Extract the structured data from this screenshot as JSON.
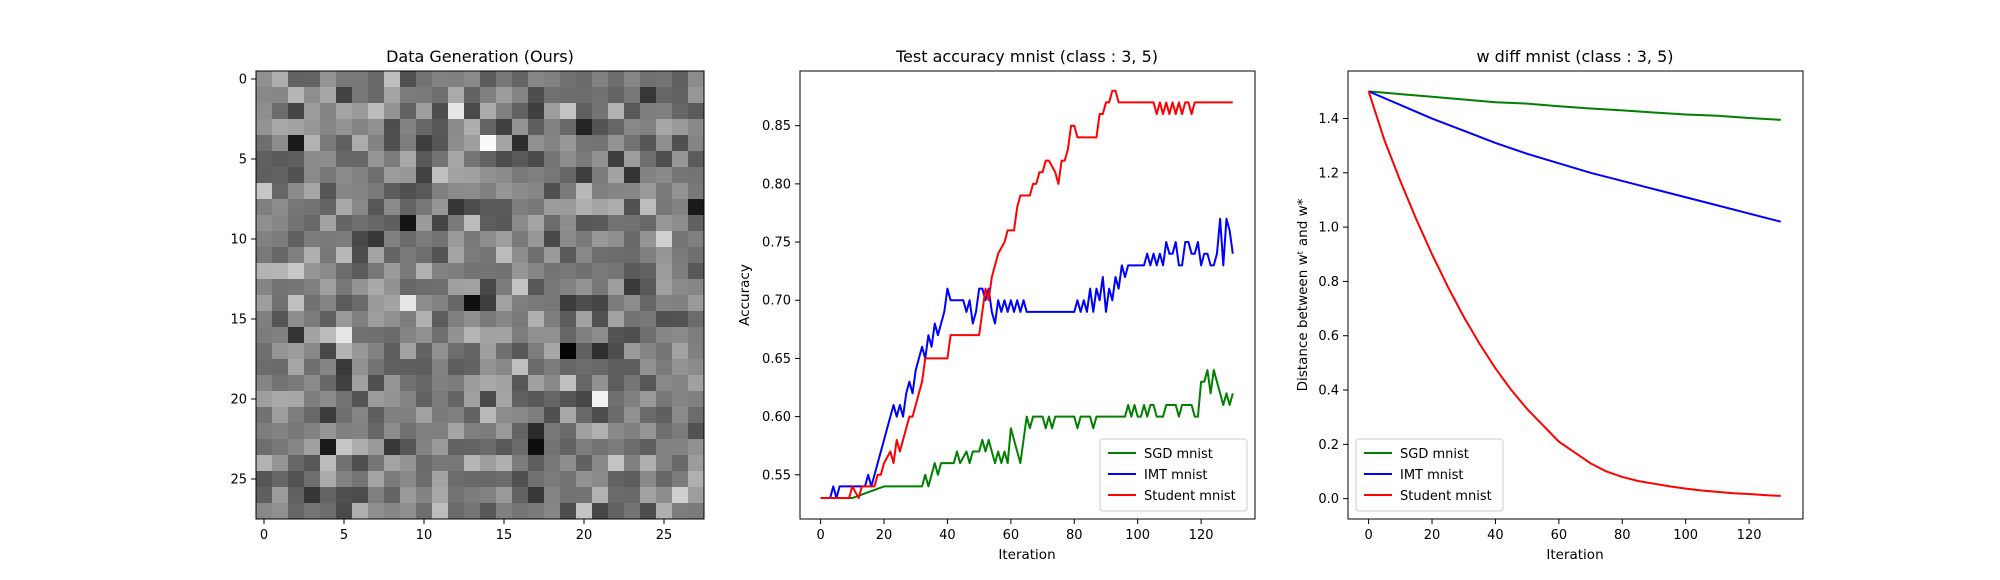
{
  "colors": {
    "sgd": "#008000",
    "imt": "#0000ff",
    "student": "#ff0000",
    "frame": "#000000"
  },
  "chart_data": [
    {
      "type": "heatmap",
      "title": "Data Generation (Ours)",
      "colormap": "gray",
      "rows": 28,
      "cols": 28,
      "xticks": [
        0,
        5,
        10,
        15,
        20,
        25
      ],
      "yticks": [
        0,
        5,
        10,
        15,
        20,
        25
      ],
      "xlim": [
        -0.5,
        27.5
      ],
      "ylim": [
        27.5,
        -0.5
      ],
      "value_range": [
        0,
        1
      ],
      "noise_seed": 7,
      "highlights": [
        {
          "row": 4,
          "col": 14,
          "value": 0.98
        },
        {
          "row": 17,
          "col": 19,
          "value": 0.02
        },
        {
          "row": 23,
          "col": 17,
          "value": 0.05
        },
        {
          "row": 23,
          "col": 4,
          "value": 0.1
        },
        {
          "row": 20,
          "col": 21,
          "value": 0.95
        },
        {
          "row": 16,
          "col": 5,
          "value": 0.9
        },
        {
          "row": 9,
          "col": 9,
          "value": 0.08
        },
        {
          "row": 14,
          "col": 13,
          "value": 0.06
        },
        {
          "row": 14,
          "col": 9,
          "value": 0.9
        },
        {
          "row": 4,
          "col": 2,
          "value": 0.1
        },
        {
          "row": 8,
          "col": 27,
          "value": 0.1
        },
        {
          "row": 2,
          "col": 12,
          "value": 0.9
        }
      ]
    },
    {
      "type": "line",
      "title": "Test accuracy mnist (class : 3, 5)",
      "xlabel": "Iteration",
      "ylabel": "Accuracy",
      "xlim": [
        -6.5,
        137
      ],
      "ylim": [
        0.512,
        0.897
      ],
      "xticks": [
        0,
        20,
        40,
        60,
        80,
        100,
        120
      ],
      "yticks": [
        0.55,
        0.6,
        0.65,
        0.7,
        0.75,
        0.8,
        0.85
      ],
      "legend": "lower-right",
      "series": [
        {
          "name": "SGD mnist",
          "color": "#008000",
          "x": [
            0,
            10,
            20,
            32,
            33,
            34,
            35,
            36,
            37,
            38,
            42,
            43,
            44,
            46,
            47,
            48,
            50,
            51,
            52,
            53,
            54,
            55,
            56,
            57,
            58,
            59,
            60,
            62,
            63,
            65,
            66,
            67,
            68,
            70,
            71,
            72,
            73,
            74,
            80,
            81,
            82,
            85,
            86,
            87,
            90,
            91,
            96,
            97,
            98,
            99,
            100,
            101,
            102,
            103,
            104,
            105,
            106,
            107,
            108,
            109,
            112,
            113,
            114,
            115,
            117,
            118,
            119,
            120,
            121,
            122,
            123,
            124,
            125,
            126,
            127,
            128,
            129,
            130
          ],
          "values": [
            0.53,
            0.53,
            0.54,
            0.54,
            0.55,
            0.54,
            0.55,
            0.56,
            0.55,
            0.56,
            0.56,
            0.57,
            0.56,
            0.57,
            0.56,
            0.57,
            0.57,
            0.58,
            0.57,
            0.58,
            0.57,
            0.56,
            0.57,
            0.56,
            0.57,
            0.56,
            0.59,
            0.57,
            0.56,
            0.6,
            0.59,
            0.6,
            0.6,
            0.6,
            0.59,
            0.6,
            0.59,
            0.6,
            0.6,
            0.59,
            0.6,
            0.6,
            0.59,
            0.6,
            0.6,
            0.6,
            0.6,
            0.61,
            0.6,
            0.61,
            0.6,
            0.6,
            0.61,
            0.6,
            0.61,
            0.61,
            0.6,
            0.6,
            0.6,
            0.61,
            0.61,
            0.6,
            0.61,
            0.61,
            0.61,
            0.6,
            0.6,
            0.63,
            0.63,
            0.64,
            0.62,
            0.64,
            0.63,
            0.62,
            0.61,
            0.62,
            0.61,
            0.62
          ]
        },
        {
          "name": "IMT mnist",
          "color": "#0000ff",
          "x": [
            0,
            3,
            4,
            5,
            6,
            14,
            15,
            16,
            17,
            18,
            19,
            20,
            21,
            22,
            23,
            24,
            25,
            26,
            27,
            28,
            29,
            30,
            31,
            32,
            33,
            34,
            35,
            36,
            37,
            38,
            39,
            40,
            41,
            42,
            45,
            46,
            47,
            48,
            49,
            50,
            51,
            52,
            53,
            54,
            55,
            56,
            57,
            58,
            59,
            60,
            61,
            62,
            63,
            64,
            65,
            80,
            81,
            82,
            83,
            84,
            85,
            86,
            87,
            88,
            89,
            90,
            91,
            92,
            93,
            94,
            95,
            96,
            97,
            98,
            100,
            101,
            102,
            103,
            104,
            105,
            106,
            107,
            108,
            109,
            110,
            111,
            112,
            113,
            114,
            115,
            116,
            117,
            118,
            119,
            120,
            121,
            122,
            123,
            124,
            125,
            126,
            127,
            128,
            129,
            130
          ],
          "values": [
            0.53,
            0.53,
            0.54,
            0.53,
            0.54,
            0.54,
            0.55,
            0.54,
            0.55,
            0.56,
            0.57,
            0.58,
            0.59,
            0.6,
            0.61,
            0.6,
            0.61,
            0.6,
            0.62,
            0.63,
            0.62,
            0.64,
            0.65,
            0.66,
            0.65,
            0.67,
            0.66,
            0.68,
            0.67,
            0.68,
            0.69,
            0.71,
            0.7,
            0.7,
            0.7,
            0.69,
            0.7,
            0.68,
            0.69,
            0.71,
            0.71,
            0.7,
            0.71,
            0.69,
            0.68,
            0.7,
            0.69,
            0.7,
            0.69,
            0.7,
            0.69,
            0.7,
            0.69,
            0.7,
            0.69,
            0.69,
            0.7,
            0.69,
            0.7,
            0.69,
            0.71,
            0.69,
            0.71,
            0.7,
            0.72,
            0.69,
            0.71,
            0.7,
            0.72,
            0.71,
            0.73,
            0.72,
            0.73,
            0.73,
            0.73,
            0.73,
            0.73,
            0.74,
            0.73,
            0.74,
            0.73,
            0.74,
            0.73,
            0.75,
            0.74,
            0.74,
            0.75,
            0.73,
            0.73,
            0.75,
            0.75,
            0.74,
            0.74,
            0.75,
            0.73,
            0.74,
            0.74,
            0.73,
            0.73,
            0.74,
            0.77,
            0.73,
            0.77,
            0.76,
            0.74
          ]
        },
        {
          "name": "Student mnist",
          "color": "#ff0000",
          "x": [
            0,
            9,
            10,
            12,
            13,
            17,
            18,
            19,
            20,
            22,
            23,
            24,
            25,
            26,
            27,
            28,
            29,
            32,
            33,
            40,
            41,
            50,
            51,
            52,
            53,
            54,
            55,
            56,
            58,
            59,
            61,
            62,
            63,
            64,
            65,
            66,
            67,
            68,
            69,
            70,
            71,
            72,
            74,
            75,
            76,
            77,
            78,
            79,
            80,
            81,
            82,
            87,
            88,
            89,
            90,
            91,
            92,
            93,
            94,
            95,
            105,
            106,
            107,
            108,
            109,
            110,
            111,
            112,
            113,
            114,
            115,
            116,
            117,
            118,
            119,
            120,
            130
          ],
          "values": [
            0.53,
            0.53,
            0.54,
            0.53,
            0.54,
            0.54,
            0.55,
            0.55,
            0.56,
            0.57,
            0.56,
            0.58,
            0.57,
            0.58,
            0.59,
            0.6,
            0.6,
            0.63,
            0.65,
            0.65,
            0.67,
            0.67,
            0.69,
            0.71,
            0.7,
            0.72,
            0.73,
            0.74,
            0.75,
            0.76,
            0.76,
            0.78,
            0.79,
            0.79,
            0.79,
            0.79,
            0.8,
            0.8,
            0.81,
            0.81,
            0.82,
            0.82,
            0.81,
            0.8,
            0.82,
            0.82,
            0.83,
            0.85,
            0.85,
            0.84,
            0.84,
            0.84,
            0.86,
            0.86,
            0.87,
            0.87,
            0.88,
            0.88,
            0.87,
            0.87,
            0.87,
            0.86,
            0.87,
            0.86,
            0.87,
            0.86,
            0.87,
            0.86,
            0.87,
            0.86,
            0.87,
            0.87,
            0.86,
            0.87,
            0.87,
            0.87,
            0.87
          ]
        }
      ]
    },
    {
      "type": "line",
      "title": "w diff mnist (class : 3, 5)",
      "xlabel": "Iteration",
      "ylabel": "Distance between wᵗ and w*",
      "xlim": [
        -6.5,
        137
      ],
      "ylim": [
        -0.075,
        1.575
      ],
      "xticks": [
        0,
        20,
        40,
        60,
        80,
        100,
        120
      ],
      "yticks": [
        0.0,
        0.2,
        0.4,
        0.6,
        0.8,
        1.0,
        1.2,
        1.4
      ],
      "legend": "lower-left",
      "series": [
        {
          "name": "SGD mnist",
          "color": "#008000",
          "x": [
            0,
            10,
            20,
            30,
            40,
            50,
            60,
            70,
            80,
            90,
            100,
            110,
            120,
            130
          ],
          "values": [
            1.5,
            1.49,
            1.48,
            1.47,
            1.46,
            1.455,
            1.445,
            1.437,
            1.43,
            1.422,
            1.415,
            1.41,
            1.402,
            1.395
          ]
        },
        {
          "name": "IMT mnist",
          "color": "#0000ff",
          "x": [
            0,
            10,
            20,
            30,
            40,
            50,
            60,
            70,
            80,
            90,
            100,
            110,
            120,
            130
          ],
          "values": [
            1.5,
            1.45,
            1.4,
            1.355,
            1.31,
            1.27,
            1.235,
            1.2,
            1.17,
            1.14,
            1.11,
            1.08,
            1.05,
            1.02
          ]
        },
        {
          "name": "Student mnist",
          "color": "#ff0000",
          "x": [
            0,
            5,
            10,
            15,
            20,
            25,
            30,
            35,
            40,
            45,
            50,
            55,
            60,
            65,
            70,
            75,
            80,
            85,
            90,
            95,
            100,
            105,
            110,
            115,
            120,
            125,
            130
          ],
          "values": [
            1.5,
            1.32,
            1.17,
            1.03,
            0.9,
            0.78,
            0.67,
            0.57,
            0.48,
            0.4,
            0.33,
            0.27,
            0.21,
            0.17,
            0.13,
            0.1,
            0.08,
            0.065,
            0.055,
            0.045,
            0.037,
            0.03,
            0.025,
            0.02,
            0.017,
            0.013,
            0.01
          ]
        }
      ]
    }
  ]
}
